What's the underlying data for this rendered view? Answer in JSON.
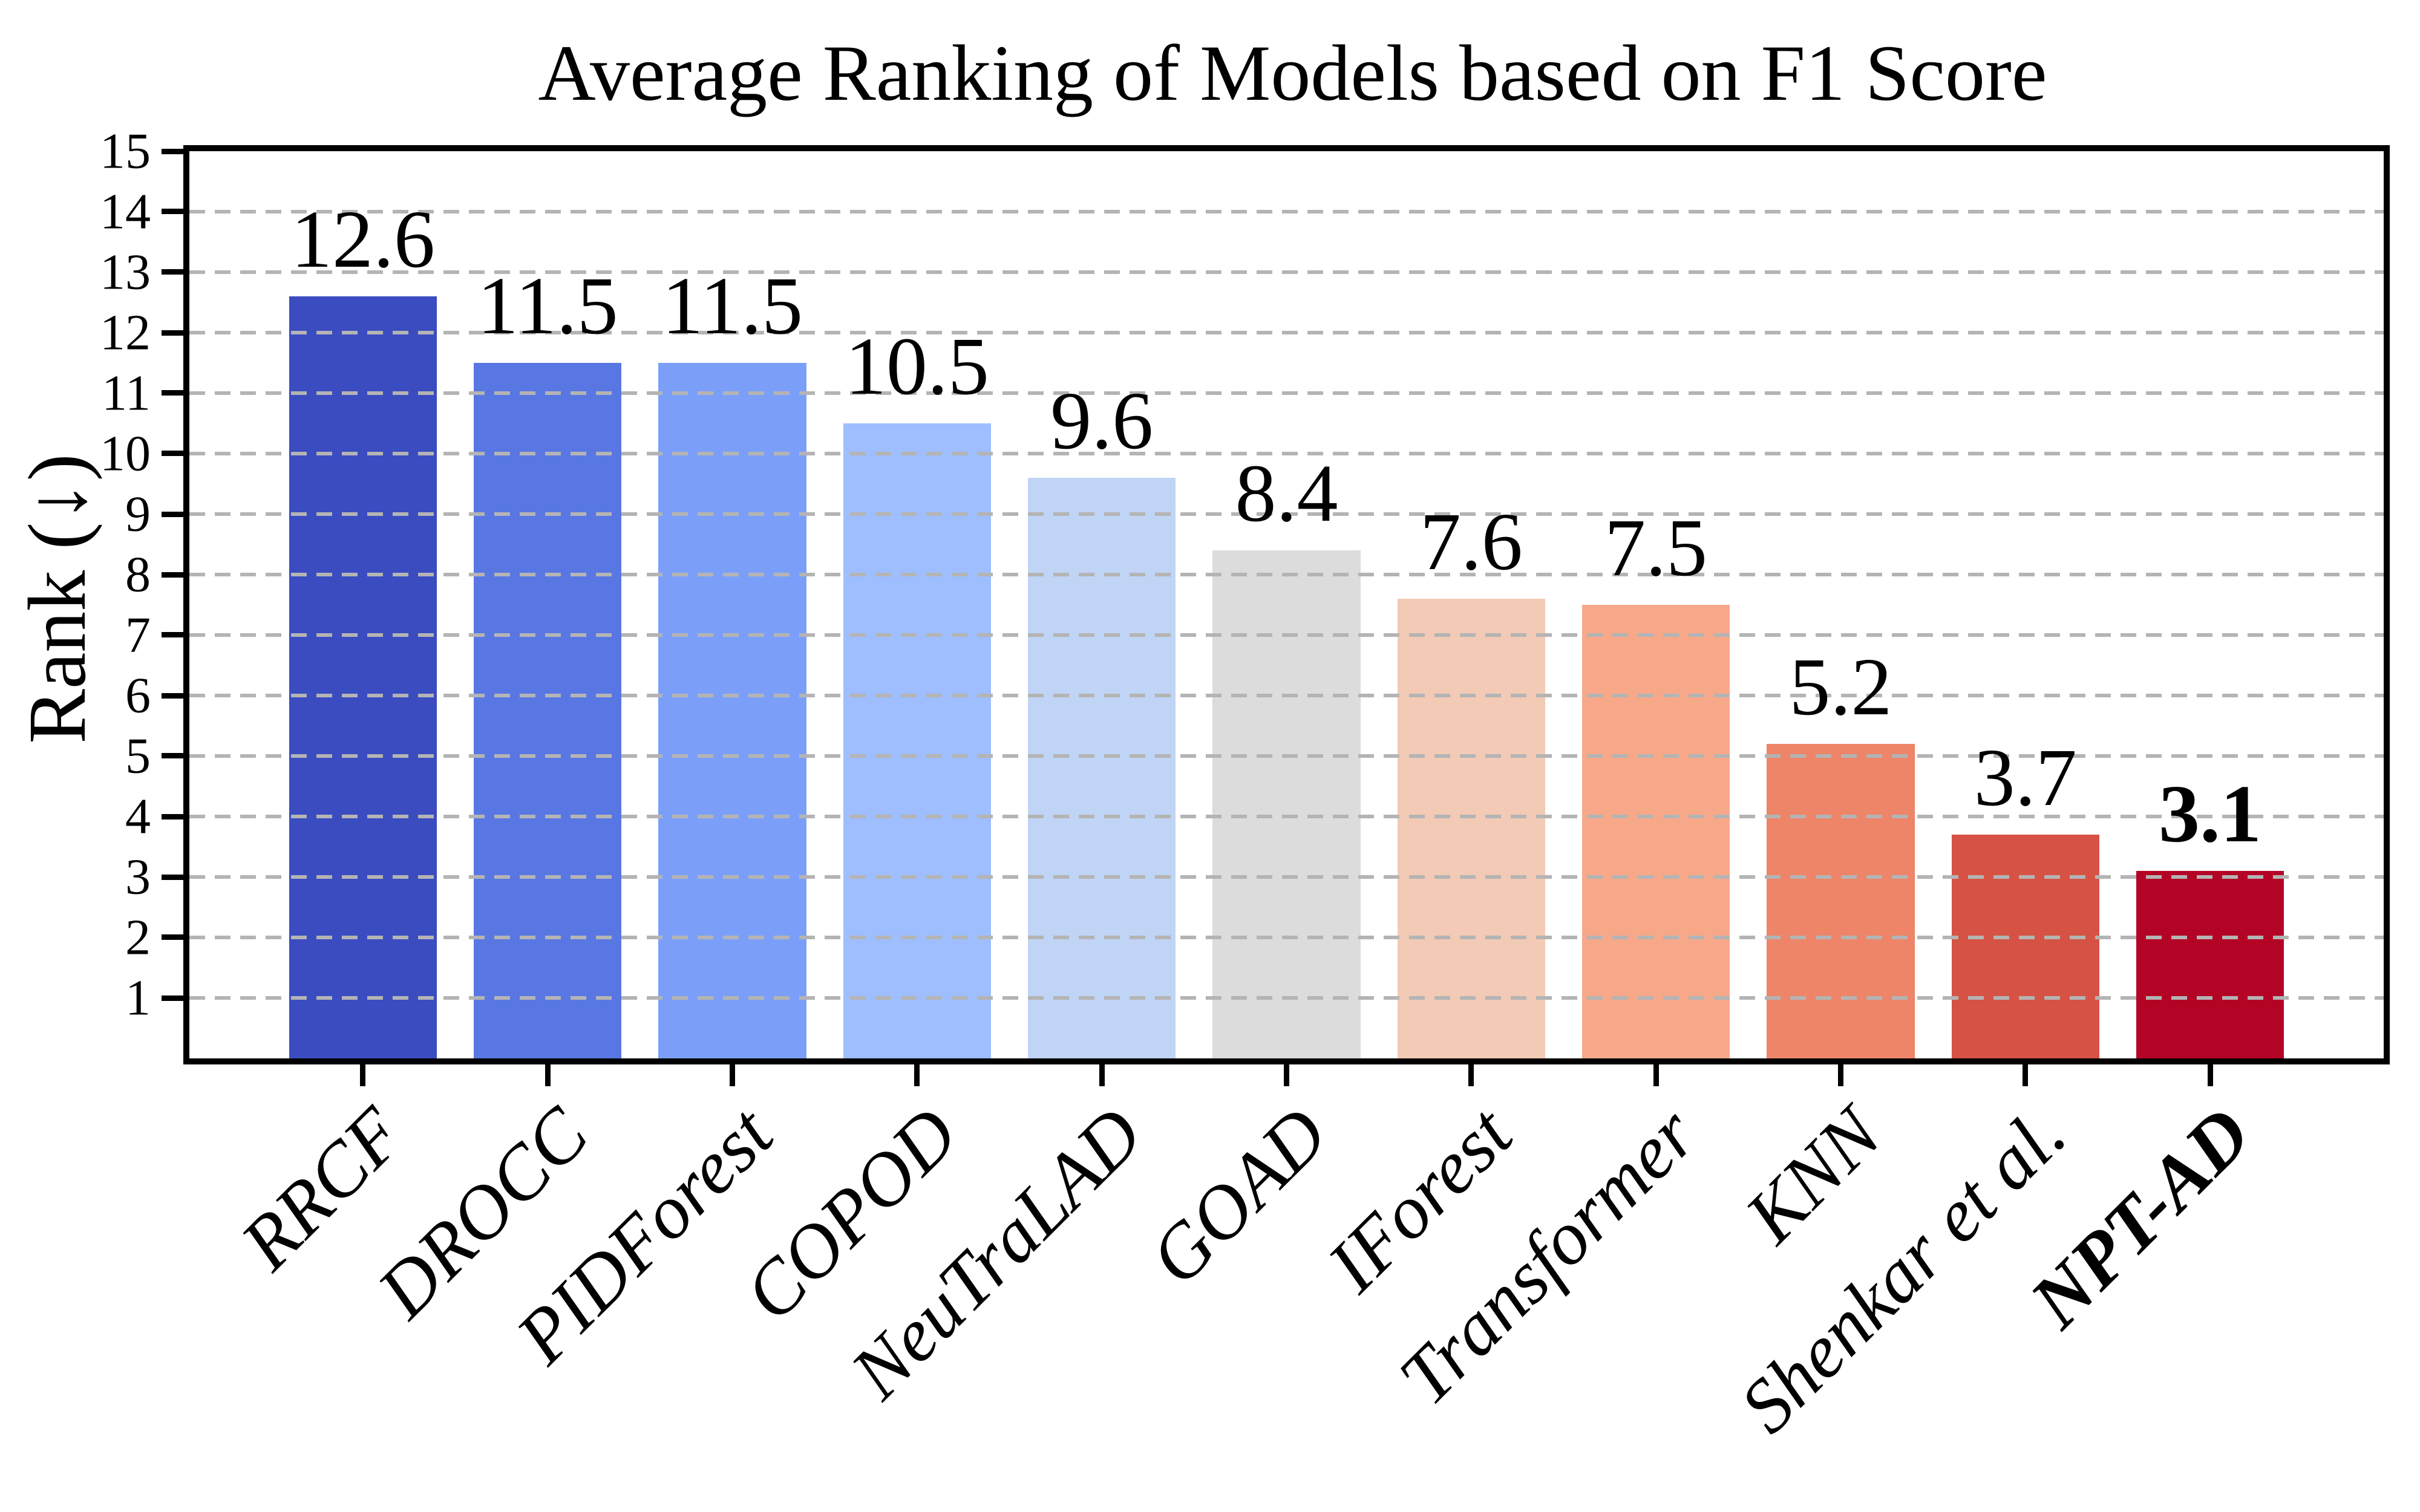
{
  "figure": {
    "title": "Average Ranking of Models based on F1 Score"
  },
  "chart_data": {
    "type": "bar",
    "title": "Average Ranking of Models based on F1 Score",
    "xlabel": "",
    "ylabel": "Rank (↓)",
    "categories": [
      "RRCF",
      "DROCC",
      "PIDForest",
      "COPOD",
      "NeuTraLAD",
      "GOAD",
      "IForest",
      "Transformer",
      "KNN",
      "Shenkar et al.",
      "NPT-AD"
    ],
    "values": [
      12.6,
      11.5,
      11.5,
      10.5,
      9.6,
      8.4,
      7.6,
      7.5,
      5.2,
      3.7,
      3.1
    ],
    "value_labels": [
      "12.6",
      "11.5",
      "11.5",
      "10.5",
      "9.6",
      "8.4",
      "7.6",
      "7.5",
      "5.2",
      "3.7",
      "3.1"
    ],
    "bar_colors": [
      "#3b4cc0",
      "#5977e3",
      "#7b9ff9",
      "#9ebeff",
      "#c0d4f5",
      "#dcdcdc",
      "#f2cab5",
      "#f7a889",
      "#ee8468",
      "#d65244",
      "#b40426"
    ],
    "emphasized_category": "NPT-AD",
    "ylim": [
      0,
      15
    ],
    "yticks": [
      1,
      2,
      3,
      4,
      5,
      6,
      7,
      8,
      9,
      10,
      11,
      12,
      13,
      14,
      15
    ],
    "grid": "horizontal dashed gray lines at each integer, drawn over bars",
    "gridline_color": "#b4b4b4",
    "spine_color": "#000000",
    "legend": "none",
    "bar_width_fraction": 0.8,
    "x_units_span": 11.88,
    "x_left_pad_units": 0.54,
    "tick_label_style": "serif",
    "category_label_style": "italic, rotated 45 degrees, right-anchored"
  }
}
